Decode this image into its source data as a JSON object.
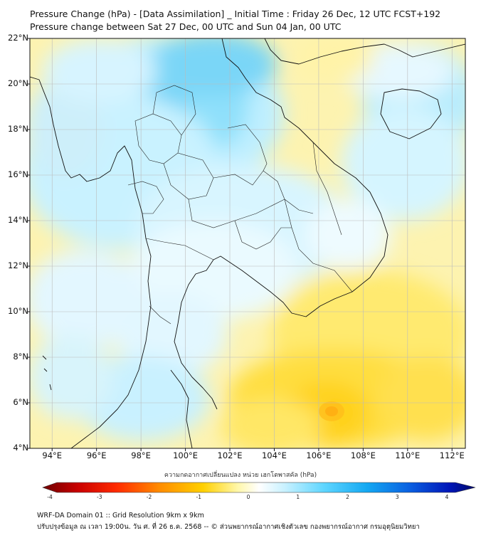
{
  "header": {
    "title_line1": "Pressure Change (hPa) - [Data Assimilation] _ Initial Time : Friday 26 Dec, 12 UTC FCST+192",
    "title_line2": "Pressure change between Sat 27 Dec, 00 UTC and Sun 04 Jan, 00 UTC"
  },
  "map": {
    "lat_labels": [
      "22°N",
      "20°N",
      "18°N",
      "16°N",
      "14°N",
      "12°N",
      "10°N",
      "8°N",
      "6°N",
      "4°N"
    ],
    "lon_labels": [
      "94°E",
      "96°E",
      "98°E",
      "100°E",
      "102°E",
      "104°E",
      "106°E",
      "108°E",
      "110°E",
      "112°E"
    ],
    "lat_range": [
      4,
      22
    ],
    "lon_range": [
      93,
      112.6
    ],
    "grid": true,
    "colors": {
      "land_line": "#111111",
      "grid": "#bbbbbb"
    }
  },
  "colorbar": {
    "title": "ความกดอากาศเปลี่ยนแปลง หน่วย เฮกโตพาสคัล (hPa)",
    "range": [
      -4,
      4
    ],
    "ticks": [
      "-4",
      "-3",
      "-2",
      "-1",
      "0",
      "1",
      "2",
      "3",
      "4"
    ]
  },
  "footer": {
    "line1": "WRF-DA Domain 01 :: Grid Resolution 9km x 9km",
    "line2": "ปรับปรุงข้อมูล ณ เวลา 19:00น. วัน ศ. ที่ 26 ธ.ค. 2568 -- © ส่วนพยากรณ์อากาศเชิงตัวเลข กองพยากรณ์อากาศ กรมอุตุนิยมวิทยา"
  }
}
